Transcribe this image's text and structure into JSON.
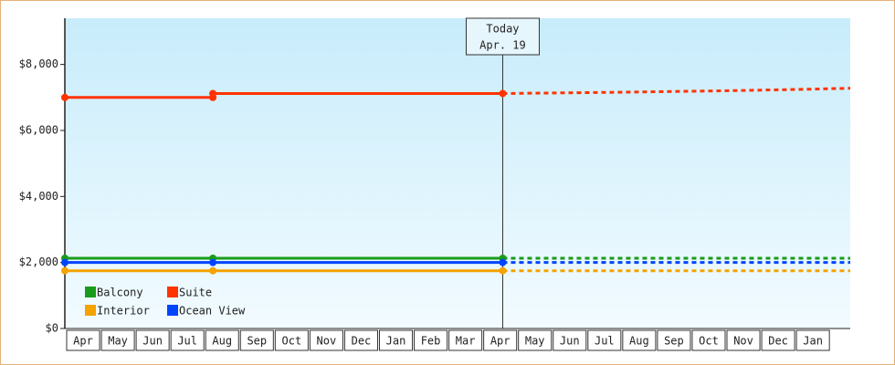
{
  "chart_data": {
    "type": "line",
    "categories": [
      "Apr",
      "May",
      "Jun",
      "Jul",
      "Aug",
      "Sep",
      "Oct",
      "Nov",
      "Dec",
      "Jan",
      "Feb",
      "Mar",
      "Apr",
      "May",
      "Jun",
      "Jul",
      "Aug",
      "Sep",
      "Oct",
      "Nov",
      "Dec",
      "Jan"
    ],
    "xlim": [
      0,
      22.6
    ],
    "ylim": [
      0,
      9400
    ],
    "yticks": [
      {
        "value": 0,
        "label": "$0"
      },
      {
        "value": 2000,
        "label": "$2,000"
      },
      {
        "value": 4000,
        "label": "$4,000"
      },
      {
        "value": 6000,
        "label": "$6,000"
      },
      {
        "value": 8000,
        "label": "$8,000"
      }
    ],
    "annotation": {
      "title": "Today",
      "date": "Apr. 19",
      "x": 12.6
    },
    "series": [
      {
        "name": "Balcony",
        "color": "#1a9c1a",
        "x": [
          0,
          4.26,
          12.6
        ],
        "values": [
          2130,
          2130,
          2130
        ],
        "forecast_x": [
          12.6,
          22.6
        ],
        "forecast_values": [
          2130,
          2130
        ]
      },
      {
        "name": "Suite",
        "color": "#ff3300",
        "x": [
          0,
          4.26,
          4.26,
          12.6
        ],
        "values": [
          7000,
          7000,
          7120,
          7120
        ],
        "forecast_x": [
          12.6,
          15.3,
          17.4,
          19.4,
          21.4,
          22.6
        ],
        "forecast_values": [
          7120,
          7150,
          7180,
          7210,
          7250,
          7280
        ]
      },
      {
        "name": "Interior",
        "color": "#f5a300",
        "x": [
          0,
          4.26,
          12.6
        ],
        "values": [
          1750,
          1750,
          1750
        ],
        "forecast_x": [
          12.6,
          22.6
        ],
        "forecast_values": [
          1750,
          1750
        ]
      },
      {
        "name": "Ocean View",
        "color": "#0044ff",
        "x": [
          0,
          4.26,
          12.6
        ],
        "values": [
          2000,
          2000,
          2000
        ],
        "forecast_x": [
          12.6,
          22.6
        ],
        "forecast_values": [
          2000,
          2000
        ]
      }
    ]
  }
}
